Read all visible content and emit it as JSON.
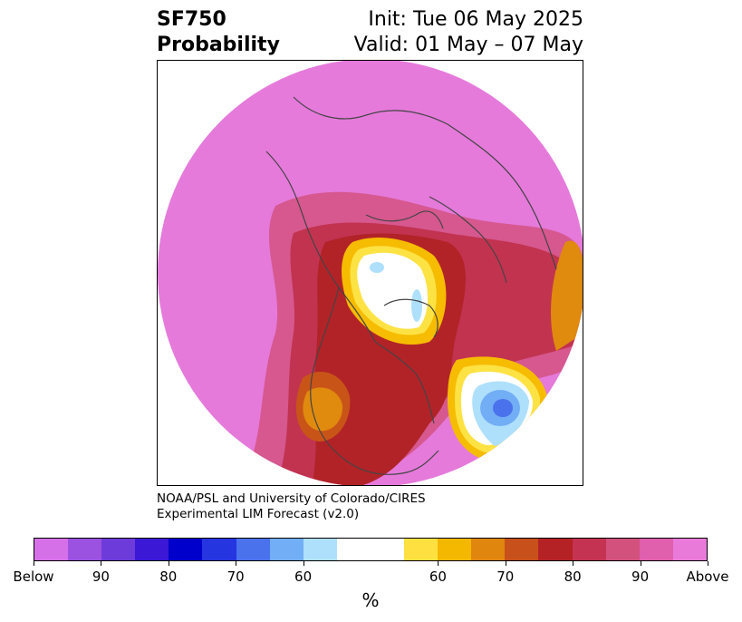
{
  "title": {
    "left_line1": "SF750",
    "left_line2": "Probability",
    "right_line1": "Init: Tue 06 May 2025",
    "right_line2": "Valid: 01 May – 07 May"
  },
  "credit": {
    "line1": "NOAA/PSL and University of Colorado/CIRES",
    "line2": "Experimental LIM Forecast (v2.0)"
  },
  "colorbar": {
    "colors": [
      "#d670e8",
      "#9b52e0",
      "#6d3bd9",
      "#3b17d6",
      "#0000cc",
      "#2535e0",
      "#4a72ec",
      "#71aef5",
      "#aee0fc",
      "#ffffff",
      "#ffffff",
      "#fee140",
      "#f5b800",
      "#e0860f",
      "#c8501a",
      "#b52225",
      "#c53352",
      "#d2517d",
      "#e060ae",
      "#e97ad9"
    ],
    "labels": [
      "Below",
      "90",
      "80",
      "70",
      "60",
      "60",
      "70",
      "80",
      "90",
      "Above"
    ],
    "unit": "%"
  },
  "map_colors": {
    "above": "#e57adb",
    "p90": "#d6588f",
    "p80": "#c23350",
    "p75": "#b22328",
    "p70": "#c95418",
    "p65": "#e08a0e",
    "p60": "#f6bc00",
    "p55": "#fde244",
    "neutral": "#ffffff",
    "b55": "#aee0fc",
    "b60": "#72aef5",
    "b70": "#4a72ec",
    "land": "#444444"
  }
}
